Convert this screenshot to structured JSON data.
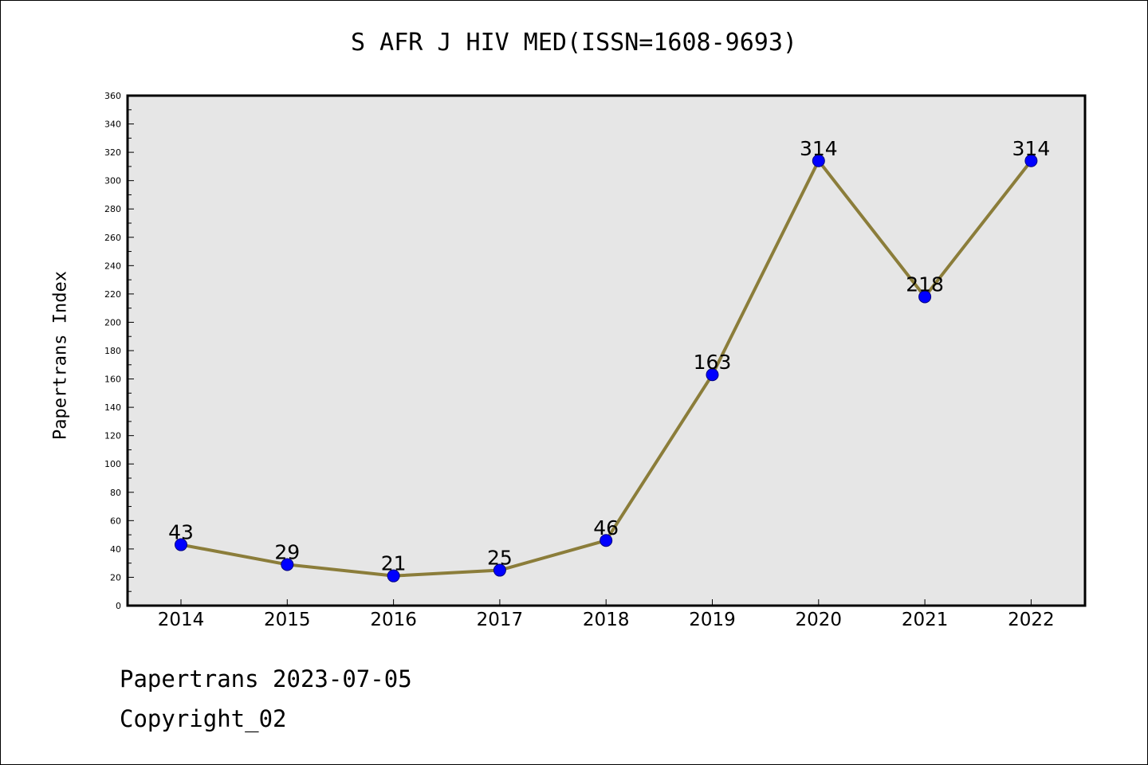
{
  "chart_data": {
    "type": "line",
    "title": "S AFR J HIV MED(ISSN=1608-9693)",
    "xlabel": "",
    "ylabel": "Papertrans Index",
    "categories": [
      "2014",
      "2015",
      "2016",
      "2017",
      "2018",
      "2019",
      "2020",
      "2021",
      "2022"
    ],
    "series": [
      {
        "values": [
          43,
          29,
          21,
          25,
          46,
          163,
          314,
          218,
          314
        ]
      }
    ],
    "ylim": [
      0,
      360
    ],
    "y_major_step": 20,
    "y_minor_step": 10,
    "grid": false,
    "legend": "none",
    "data_labels": true,
    "colors": {
      "line": "#8b7d3a",
      "marker": "#0000ff",
      "marker_edge": "#000080",
      "plot_background": "#e6e6e6"
    }
  },
  "footer": {
    "line1": "Papertrans 2023-07-05",
    "line2": "Copyright_02"
  }
}
